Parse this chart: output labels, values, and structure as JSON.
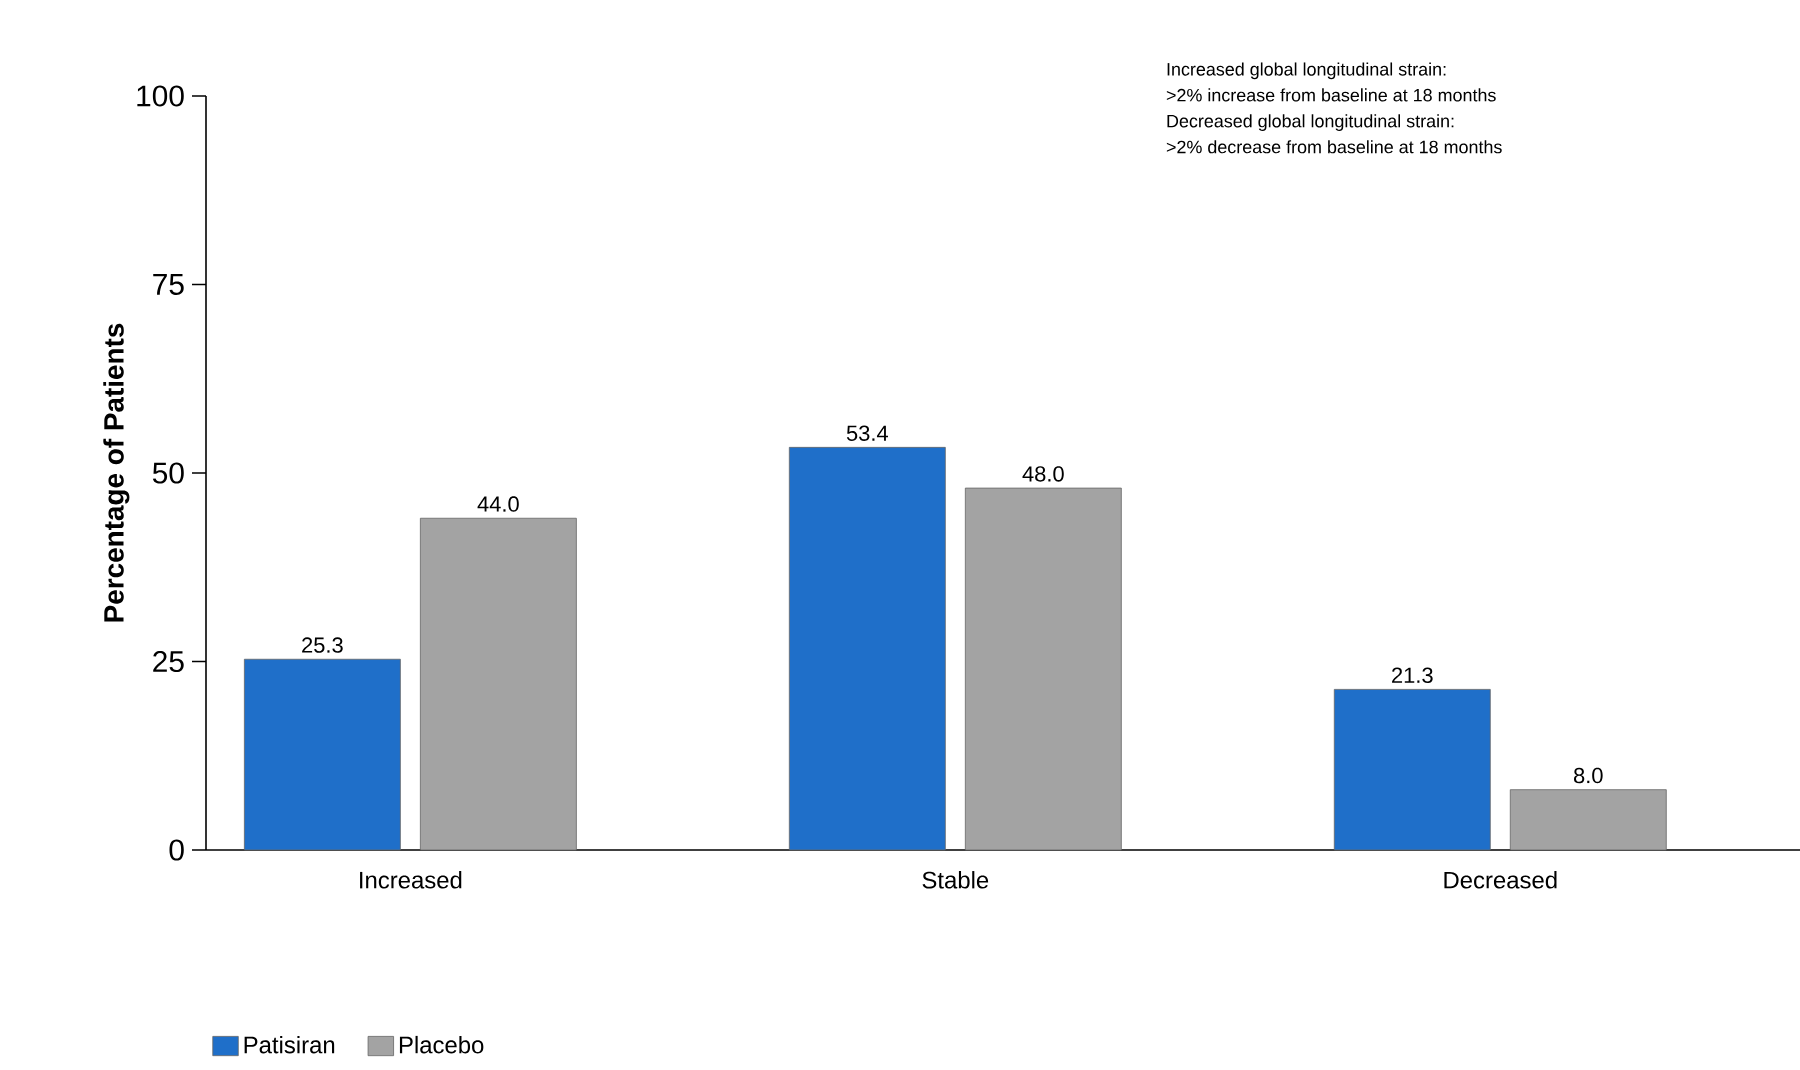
{
  "chart_data": {
    "type": "bar",
    "ylabel": "Percentage of Patients",
    "categories": [
      "Increased",
      "Stable",
      "Decreased"
    ],
    "series": [
      {
        "name": "Patisiran",
        "color": "#1f6fc9",
        "values": [
          25.3,
          53.4,
          21.3
        ],
        "value_labels": [
          "25.3",
          "53.4",
          "21.3"
        ]
      },
      {
        "name": "Placebo",
        "color": "#a3a3a3",
        "values": [
          44.0,
          48.0,
          8.0
        ],
        "value_labels": [
          "44.0",
          "48.0",
          "8.0"
        ]
      }
    ],
    "ylim": [
      0,
      100
    ],
    "yticks": [
      0,
      25,
      50,
      75,
      100
    ],
    "grid": false,
    "legend": "bottom left",
    "annotations": [
      "Increased global longitudinal strain:",
      ">2% increase from baseline at 18 months",
      "Decreased global longitudinal strain:",
      ">2% decrease from baseline at 18 months"
    ]
  }
}
